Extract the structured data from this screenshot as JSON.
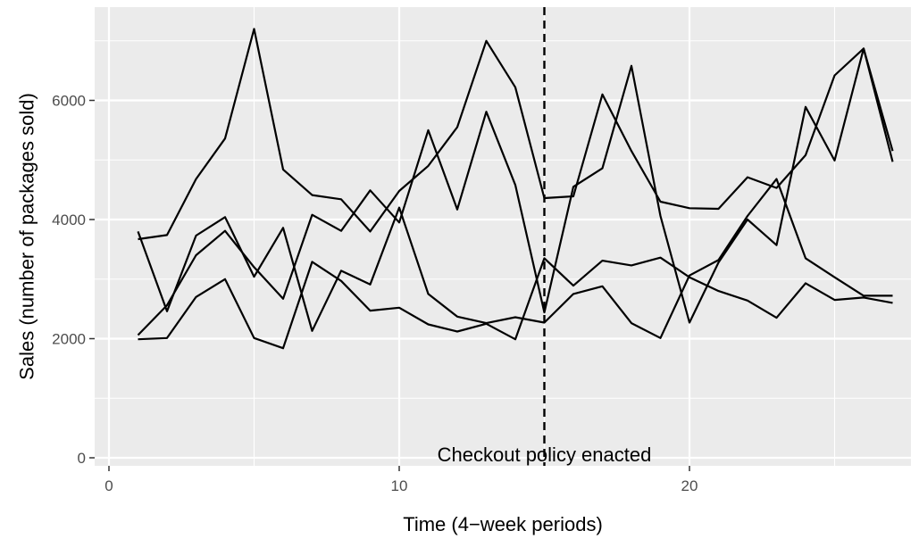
{
  "chart_data": {
    "type": "line",
    "title": "",
    "xlabel": "Time (4−week periods)",
    "ylabel": "Sales (number of packages sold)",
    "xlim": [
      0,
      28
    ],
    "ylim": [
      0,
      7500
    ],
    "x_ticks": [
      0,
      10,
      20
    ],
    "y_ticks": [
      0,
      2000,
      4000,
      6000
    ],
    "grid": true,
    "legend": "none",
    "line_color": "#000000",
    "panel_background": "#ebebeb",
    "grid_color": "#ffffff",
    "vline": {
      "x": 15,
      "style": "dashed",
      "label": "Checkout policy enacted"
    },
    "x": [
      1,
      2,
      3,
      4,
      5,
      6,
      7,
      8,
      9,
      10,
      11,
      12,
      13,
      14,
      15,
      16,
      17,
      18,
      19,
      20,
      21,
      22,
      23,
      24,
      25,
      26,
      27
    ],
    "series": [
      {
        "values": [
          3670,
          3740,
          4680,
          5360,
          7200,
          4840,
          4410,
          4340,
          3800,
          4480,
          4900,
          5550,
          7000,
          6220,
          4360,
          4390,
          6100,
          5150,
          4300,
          4190,
          4180,
          4710,
          4530,
          5080,
          6420,
          6870,
          5150
        ]
      },
      {
        "values": [
          2060,
          2560,
          3400,
          3810,
          3200,
          2670,
          4080,
          3810,
          4490,
          3950,
          5500,
          4170,
          5810,
          4580,
          2440,
          4550,
          4860,
          6580,
          4060,
          2270,
          3280,
          4000,
          3570,
          5890,
          4990,
          6870,
          4970
        ]
      },
      {
        "values": [
          3800,
          2460,
          3730,
          4040,
          3040,
          3860,
          2130,
          3140,
          2910,
          4200,
          2750,
          2370,
          2260,
          2360,
          2270,
          2750,
          2880,
          2260,
          2010,
          3060,
          3320,
          4060,
          4680,
          3350,
          3030,
          2720,
          2720
        ]
      },
      {
        "values": [
          1990,
          2010,
          2700,
          3000,
          2010,
          1840,
          3290,
          2970,
          2470,
          2520,
          2240,
          2120,
          2250,
          1990,
          3350,
          2890,
          3310,
          3230,
          3360,
          3030,
          2800,
          2640,
          2350,
          2930,
          2650,
          2690,
          2600
        ]
      }
    ]
  }
}
